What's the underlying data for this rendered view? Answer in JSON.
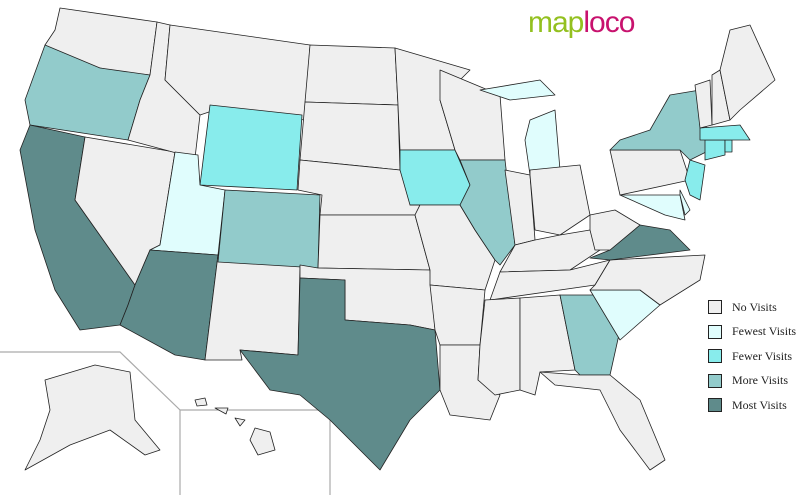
{
  "logo": {
    "part1": "map",
    "part2": "loco"
  },
  "colors": {
    "none": "#efefef",
    "fewest": "#e0fdfd",
    "fewer": "#88ecec",
    "more": "#92cbcb",
    "most": "#5f8b8b"
  },
  "legend": [
    {
      "key": "none",
      "label": "No Visits"
    },
    {
      "key": "fewest",
      "label": "Fewest Visits"
    },
    {
      "key": "fewer",
      "label": "Fewer Visits"
    },
    {
      "key": "more",
      "label": "More Visits"
    },
    {
      "key": "most",
      "label": "Most Visits"
    }
  ],
  "states": {
    "WA": "none",
    "OR": "more",
    "CA": "most",
    "NV": "none",
    "ID": "none",
    "MT": "none",
    "WY": "fewer",
    "UT": "fewest",
    "AZ": "most",
    "NM": "none",
    "CO": "more",
    "ND": "none",
    "SD": "none",
    "NE": "none",
    "KS": "none",
    "OK": "none",
    "TX": "most",
    "MN": "none",
    "IA": "fewer",
    "MO": "none",
    "AR": "none",
    "LA": "none",
    "WI": "none",
    "IL": "more",
    "MI": "fewest",
    "IN": "none",
    "OH": "none",
    "KY": "none",
    "TN": "none",
    "MS": "none",
    "AL": "none",
    "GA": "more",
    "FL": "none",
    "SC": "fewest",
    "NC": "none",
    "VA": "most",
    "WV": "none",
    "PA": "none",
    "NY": "more",
    "MD": "fewest",
    "DE": "fewest",
    "NJ": "fewer",
    "CT": "fewer",
    "RI": "fewer",
    "MA": "fewer",
    "VT": "none",
    "NH": "none",
    "ME": "none",
    "AK": "none",
    "HI": "none"
  }
}
